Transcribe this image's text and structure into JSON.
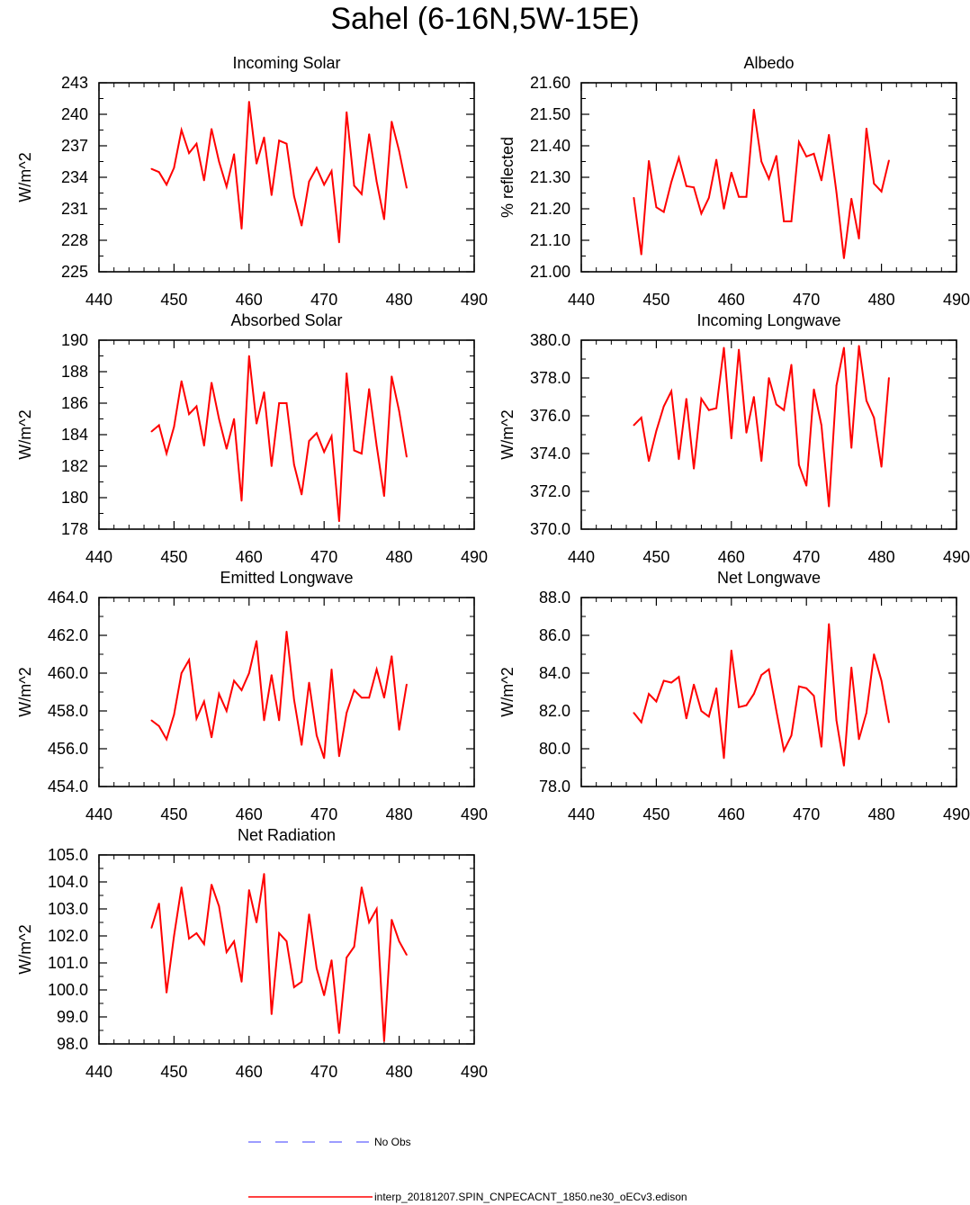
{
  "title": "Sahel (6-16N,5W-15E)",
  "colors": {
    "model_line": "#ff0000",
    "obs_line": "#3a3aff",
    "axis": "#000000"
  },
  "legend": {
    "obs_label": "No Obs",
    "model_label": "interp_20181207.SPIN_CNPECACNT_1850.ne30_oECv3.edison"
  },
  "chart_data": [
    {
      "type": "line",
      "title": "Incoming Solar",
      "ylabel": "W/m^2",
      "xlim": [
        440,
        490
      ],
      "ylim": [
        225,
        243
      ],
      "xticks": [
        440,
        450,
        460,
        470,
        480,
        490
      ],
      "xtick_labels": [
        "440",
        "450",
        "460",
        "470",
        "480",
        "490"
      ],
      "yticks": [
        225,
        228,
        231,
        234,
        237,
        240,
        243
      ],
      "ytick_labels": [
        "225",
        "228",
        "231",
        "234",
        "237",
        "240",
        "243"
      ],
      "x": [
        447,
        448,
        449,
        450,
        451,
        452,
        453,
        454,
        455,
        456,
        457,
        458,
        459,
        460,
        461,
        462,
        463,
        464,
        465,
        466,
        467,
        468,
        469,
        470,
        471,
        472,
        473,
        474,
        475,
        476,
        477,
        478,
        479,
        480,
        481
      ],
      "values": [
        234.8,
        234.5,
        233.3,
        234.9,
        238.5,
        236.3,
        237.2,
        233.7,
        238.6,
        235.5,
        233.1,
        236.2,
        229.1,
        241.2,
        235.3,
        237.8,
        232.3,
        237.5,
        237.2,
        232.2,
        229.4,
        233.6,
        234.9,
        233.3,
        234.6,
        227.8,
        240.2,
        233.2,
        232.4,
        238.1,
        233.6,
        230.0,
        239.3,
        236.5,
        233.0
      ]
    },
    {
      "type": "line",
      "title": "Albedo",
      "ylabel": "% reflected",
      "xlim": [
        440,
        490
      ],
      "ylim": [
        21.0,
        21.6
      ],
      "xticks": [
        440,
        450,
        460,
        470,
        480,
        490
      ],
      "xtick_labels": [
        "440",
        "450",
        "460",
        "470",
        "480",
        "490"
      ],
      "yticks": [
        21.0,
        21.1,
        21.2,
        21.3,
        21.4,
        21.5,
        21.6
      ],
      "ytick_labels": [
        "21.00",
        "21.10",
        "21.20",
        "21.30",
        "21.40",
        "21.50",
        "21.60"
      ],
      "x": [
        447,
        448,
        449,
        450,
        451,
        452,
        453,
        454,
        455,
        456,
        457,
        458,
        459,
        460,
        461,
        462,
        463,
        464,
        465,
        466,
        467,
        468,
        469,
        470,
        471,
        472,
        473,
        474,
        475,
        476,
        477,
        478,
        479,
        480,
        481
      ],
      "values": [
        21.235,
        21.055,
        21.352,
        21.205,
        21.19,
        21.285,
        21.362,
        21.272,
        21.268,
        21.185,
        21.235,
        21.356,
        21.2,
        21.315,
        21.238,
        21.238,
        21.515,
        21.35,
        21.295,
        21.368,
        21.16,
        21.16,
        21.412,
        21.366,
        21.375,
        21.29,
        21.435,
        21.252,
        21.043,
        21.232,
        21.105,
        21.455,
        21.28,
        21.255,
        21.353
      ]
    },
    {
      "type": "line",
      "title": "Absorbed Solar",
      "ylabel": "W/m^2",
      "xlim": [
        440,
        490
      ],
      "ylim": [
        178,
        190
      ],
      "xticks": [
        440,
        450,
        460,
        470,
        480,
        490
      ],
      "xtick_labels": [
        "440",
        "450",
        "460",
        "470",
        "480",
        "490"
      ],
      "yticks": [
        178,
        180,
        182,
        184,
        186,
        188,
        190
      ],
      "ytick_labels": [
        "178",
        "180",
        "182",
        "184",
        "186",
        "188",
        "190"
      ],
      "x": [
        447,
        448,
        449,
        450,
        451,
        452,
        453,
        454,
        455,
        456,
        457,
        458,
        459,
        460,
        461,
        462,
        463,
        464,
        465,
        466,
        467,
        468,
        469,
        470,
        471,
        472,
        473,
        474,
        475,
        476,
        477,
        478,
        479,
        480,
        481
      ],
      "values": [
        184.2,
        184.6,
        182.8,
        184.5,
        187.4,
        185.3,
        185.8,
        183.3,
        187.3,
        185.0,
        183.1,
        185.0,
        179.8,
        189.0,
        184.7,
        186.7,
        182.0,
        186.0,
        186.0,
        182.1,
        180.2,
        183.6,
        184.1,
        182.9,
        183.9,
        178.5,
        187.9,
        183.0,
        182.8,
        186.9,
        183.3,
        180.1,
        187.7,
        185.5,
        182.6
      ]
    },
    {
      "type": "line",
      "title": "Incoming Longwave",
      "ylabel": "W/m^2",
      "xlim": [
        440,
        490
      ],
      "ylim": [
        370,
        380
      ],
      "xticks": [
        440,
        450,
        460,
        470,
        480,
        490
      ],
      "xtick_labels": [
        "440",
        "450",
        "460",
        "470",
        "480",
        "490"
      ],
      "yticks": [
        370,
        372,
        374,
        376,
        378,
        380
      ],
      "ytick_labels": [
        "370.0",
        "372.0",
        "374.0",
        "376.0",
        "378.0",
        "380.0"
      ],
      "x": [
        447,
        448,
        449,
        450,
        451,
        452,
        453,
        454,
        455,
        456,
        457,
        458,
        459,
        460,
        461,
        462,
        463,
        464,
        465,
        466,
        467,
        468,
        469,
        470,
        471,
        472,
        473,
        474,
        475,
        476,
        477,
        478,
        479,
        480,
        481
      ],
      "values": [
        375.5,
        375.9,
        373.6,
        375.2,
        376.5,
        377.3,
        373.7,
        376.9,
        373.2,
        376.9,
        376.3,
        376.4,
        379.6,
        374.8,
        379.5,
        375.1,
        377.0,
        373.6,
        378.0,
        376.6,
        376.3,
        378.7,
        373.4,
        372.3,
        377.4,
        375.5,
        371.2,
        377.6,
        379.6,
        374.3,
        379.7,
        376.8,
        375.9,
        373.3,
        378.0
      ]
    },
    {
      "type": "line",
      "title": "Emitted Longwave",
      "ylabel": "W/m^2",
      "xlim": [
        440,
        490
      ],
      "ylim": [
        454,
        464
      ],
      "xticks": [
        440,
        450,
        460,
        470,
        480,
        490
      ],
      "xtick_labels": [
        "440",
        "450",
        "460",
        "470",
        "480",
        "490"
      ],
      "yticks": [
        454,
        456,
        458,
        460,
        462,
        464
      ],
      "ytick_labels": [
        "454.0",
        "456.0",
        "458.0",
        "460.0",
        "462.0",
        "464.0"
      ],
      "x": [
        447,
        448,
        449,
        450,
        451,
        452,
        453,
        454,
        455,
        456,
        457,
        458,
        459,
        460,
        461,
        462,
        463,
        464,
        465,
        466,
        467,
        468,
        469,
        470,
        471,
        472,
        473,
        474,
        475,
        476,
        477,
        478,
        479,
        480,
        481
      ],
      "values": [
        457.5,
        457.2,
        456.5,
        457.8,
        460.0,
        460.7,
        457.6,
        458.5,
        456.6,
        458.9,
        458.0,
        459.6,
        459.1,
        460.0,
        461.7,
        457.5,
        459.9,
        457.5,
        462.2,
        458.6,
        456.2,
        459.5,
        456.7,
        455.5,
        460.2,
        455.6,
        457.9,
        459.1,
        458.7,
        458.7,
        460.2,
        458.7,
        460.9,
        457.0,
        459.4
      ]
    },
    {
      "type": "line",
      "title": "Net Longwave",
      "ylabel": "W/m^2",
      "xlim": [
        440,
        490
      ],
      "ylim": [
        78,
        88
      ],
      "xticks": [
        440,
        450,
        460,
        470,
        480,
        490
      ],
      "xtick_labels": [
        "440",
        "450",
        "460",
        "470",
        "480",
        "490"
      ],
      "yticks": [
        78,
        80,
        82,
        84,
        86,
        88
      ],
      "ytick_labels": [
        "78.0",
        "80.0",
        "82.0",
        "84.0",
        "86.0",
        "88.0"
      ],
      "x": [
        447,
        448,
        449,
        450,
        451,
        452,
        453,
        454,
        455,
        456,
        457,
        458,
        459,
        460,
        461,
        462,
        463,
        464,
        465,
        466,
        467,
        468,
        469,
        470,
        471,
        472,
        473,
        474,
        475,
        476,
        477,
        478,
        479,
        480,
        481
      ],
      "values": [
        81.9,
        81.4,
        82.9,
        82.5,
        83.6,
        83.5,
        83.8,
        81.6,
        83.4,
        82.0,
        81.7,
        83.2,
        79.5,
        85.2,
        82.2,
        82.3,
        82.9,
        83.9,
        84.2,
        82.0,
        79.9,
        80.7,
        83.3,
        83.2,
        82.8,
        80.1,
        86.6,
        81.5,
        79.1,
        84.3,
        80.5,
        81.9,
        85.0,
        83.6,
        81.4
      ]
    },
    {
      "type": "line",
      "title": "Net Radiation",
      "ylabel": "W/m^2",
      "xlim": [
        440,
        490
      ],
      "ylim": [
        98,
        105
      ],
      "xticks": [
        440,
        450,
        460,
        470,
        480,
        490
      ],
      "xtick_labels": [
        "440",
        "450",
        "460",
        "470",
        "480",
        "490"
      ],
      "yticks": [
        98,
        99,
        100,
        101,
        102,
        103,
        104,
        105
      ],
      "ytick_labels": [
        "98.0",
        "99.0",
        "100.0",
        "101.0",
        "102.0",
        "103.0",
        "104.0",
        "105.0"
      ],
      "x": [
        447,
        448,
        449,
        450,
        451,
        452,
        453,
        454,
        455,
        456,
        457,
        458,
        459,
        460,
        461,
        462,
        463,
        464,
        465,
        466,
        467,
        468,
        469,
        470,
        471,
        472,
        473,
        474,
        475,
        476,
        477,
        478,
        479,
        480,
        481
      ],
      "values": [
        102.3,
        103.2,
        99.9,
        102.0,
        103.8,
        101.9,
        102.1,
        101.7,
        103.9,
        103.1,
        101.4,
        101.8,
        100.3,
        103.7,
        102.5,
        104.3,
        99.1,
        102.1,
        101.8,
        100.1,
        100.3,
        102.8,
        100.8,
        99.8,
        101.1,
        98.4,
        101.2,
        101.6,
        103.8,
        102.5,
        103.0,
        98.1,
        102.6,
        101.8,
        101.3
      ]
    }
  ]
}
